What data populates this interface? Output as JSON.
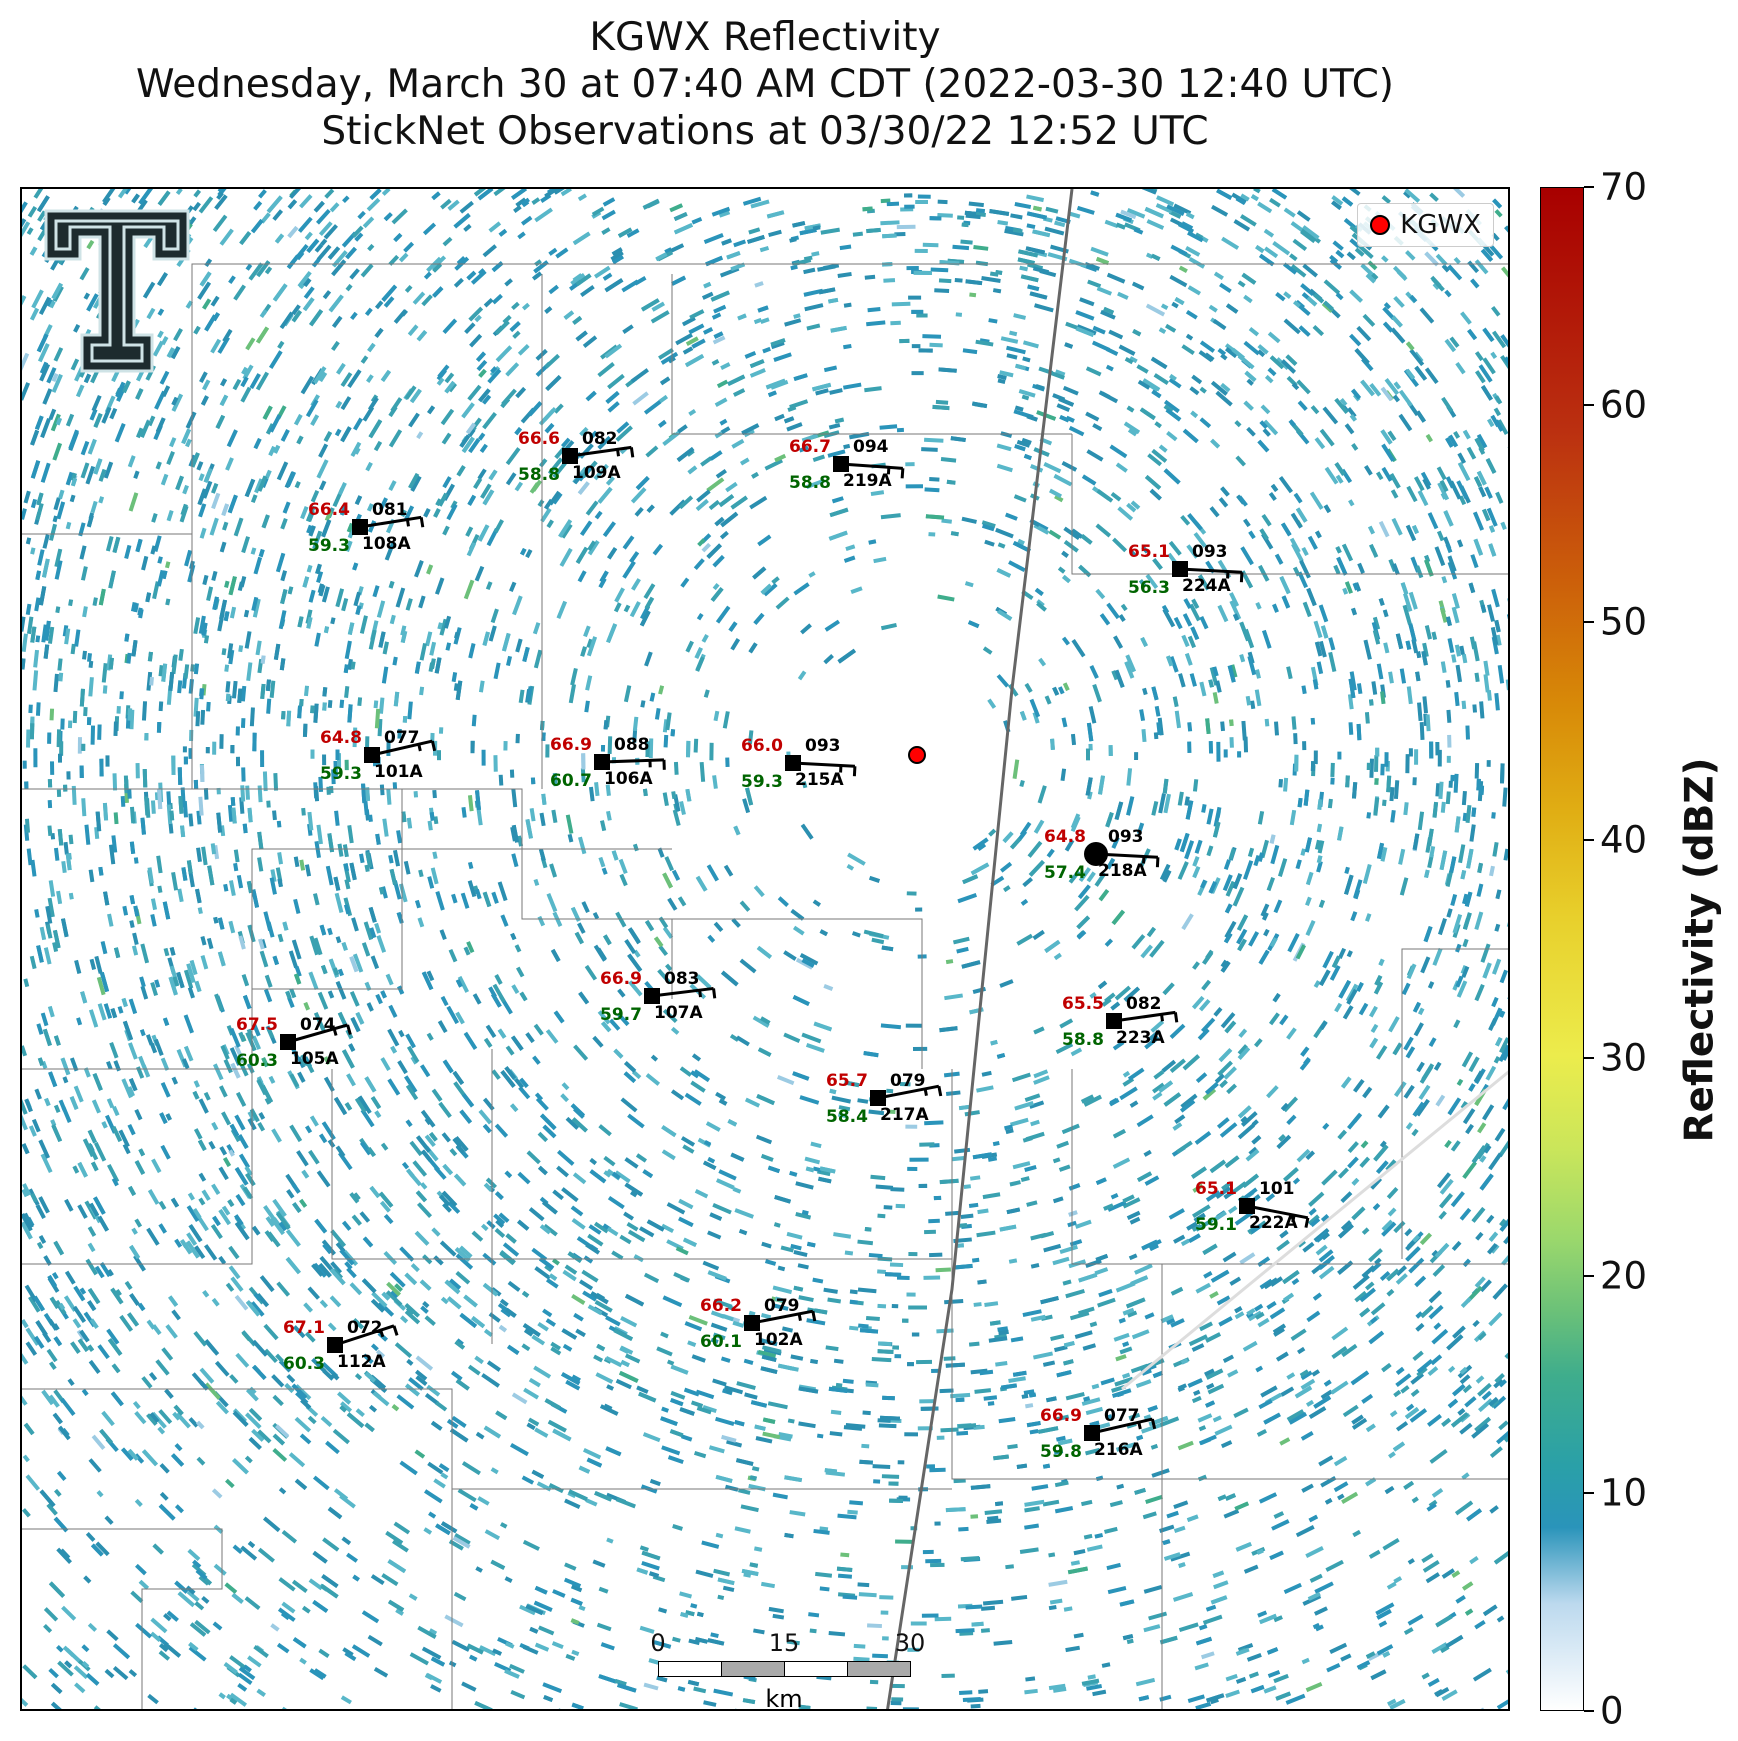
{
  "title": {
    "line1": "KGWX Reflectivity",
    "line2": "Wednesday, March 30 at 07:40 AM CDT (2022-03-30 12:40 UTC)",
    "line3": "StickNet Observations at 03/30/22 12:52 UTC"
  },
  "legend": {
    "label": "KGWX",
    "marker_color": "#ff0000"
  },
  "colorbar": {
    "title": "Reflectivity (dBZ)",
    "ticks": [
      "0",
      "10",
      "20",
      "30",
      "40",
      "50",
      "60",
      "70"
    ],
    "range": [
      0,
      70
    ]
  },
  "scalebar": {
    "ticks": [
      "0",
      "15",
      "30"
    ],
    "unit": "km"
  },
  "colors": {
    "temperature": "#c00000",
    "dewpoint": "#006400",
    "station": "#000000",
    "radar": "#ff0000"
  },
  "stations": [
    {
      "id": "109A",
      "temp": "66.6",
      "dew": "58.8",
      "dir": "082"
    },
    {
      "id": "219A",
      "temp": "66.7",
      "dew": "58.8",
      "dir": "094"
    },
    {
      "id": "108A",
      "temp": "66.4",
      "dew": "59.3",
      "dir": "081"
    },
    {
      "id": "224A",
      "temp": "65.1",
      "dew": "56.3",
      "dir": "093"
    },
    {
      "id": "101A",
      "temp": "64.8",
      "dew": "59.3",
      "dir": "077"
    },
    {
      "id": "106A",
      "temp": "66.9",
      "dew": "60.7",
      "dir": "088"
    },
    {
      "id": "215A",
      "temp": "66.0",
      "dew": "59.3",
      "dir": "093"
    },
    {
      "id": "218A",
      "temp": "64.8",
      "dew": "57.4",
      "dir": "093"
    },
    {
      "id": "107A",
      "temp": "66.9",
      "dew": "59.7",
      "dir": "083"
    },
    {
      "id": "223A",
      "temp": "65.5",
      "dew": "58.8",
      "dir": "082"
    },
    {
      "id": "105A",
      "temp": "67.5",
      "dew": "60.3",
      "dir": "074"
    },
    {
      "id": "217A",
      "temp": "65.7",
      "dew": "58.4",
      "dir": "079"
    },
    {
      "id": "222A",
      "temp": "65.1",
      "dew": "59.1",
      "dir": "101"
    },
    {
      "id": "102A",
      "temp": "66.2",
      "dew": "60.1",
      "dir": "079"
    },
    {
      "id": "112A",
      "temp": "67.1",
      "dew": "60.3",
      "dir": "072"
    },
    {
      "id": "216A",
      "temp": "66.9",
      "dew": "59.8",
      "dir": "077"
    }
  ]
}
